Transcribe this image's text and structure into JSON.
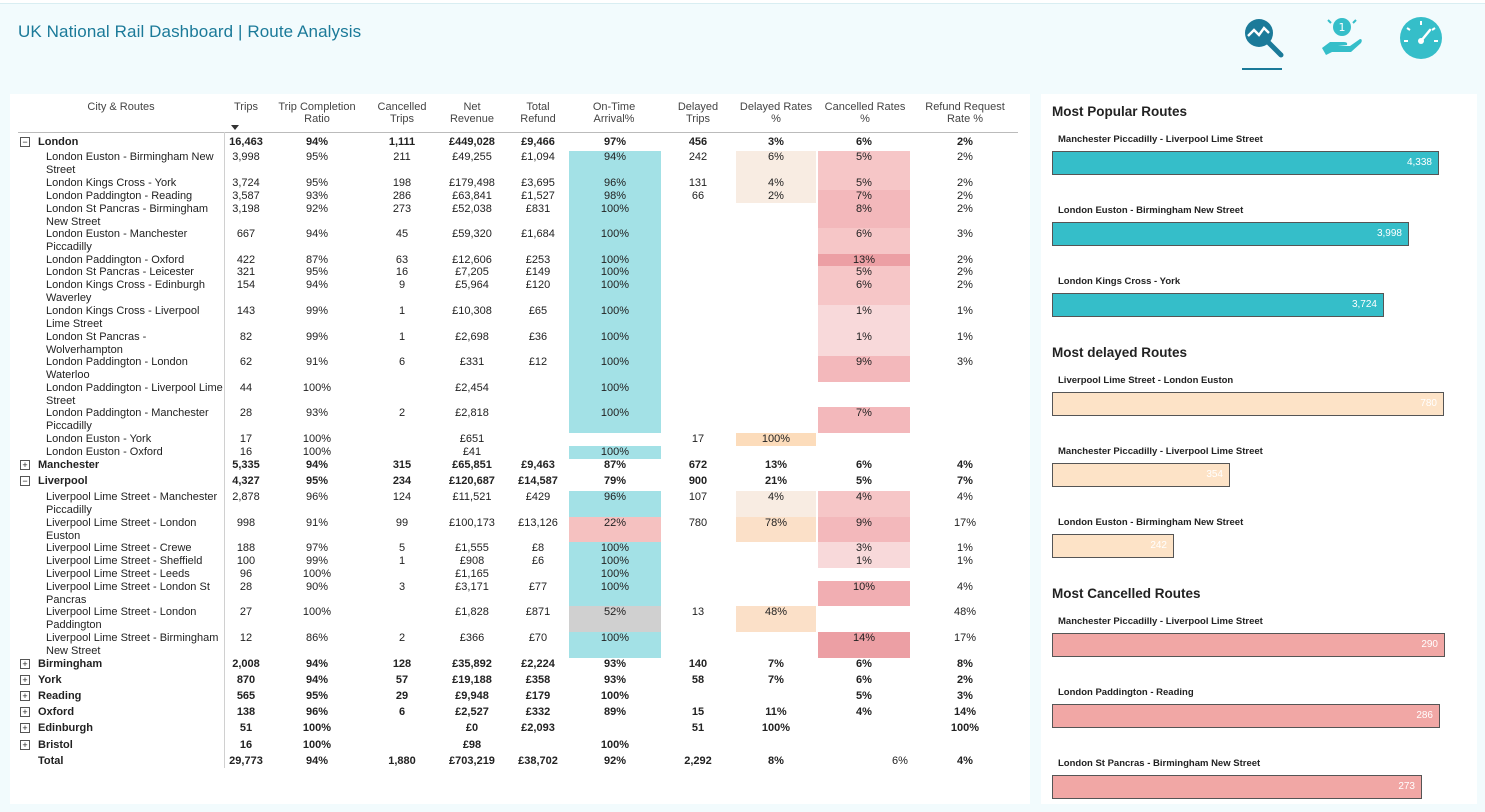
{
  "header": {
    "title": "UK National Rail Dashboard | Route Analysis",
    "nav_icons": [
      "route-analysis-icon",
      "refund-hand-icon",
      "speedometer-icon"
    ]
  },
  "colors": {
    "accent": "#1b7a99",
    "popular_bar": "#35bec9",
    "delayed_bar": "#fde3c7",
    "cancelled_bar": "#f1a7a5",
    "ontime_cell": "#a3e1e6"
  },
  "table": {
    "columns": [
      "City & Routes",
      "Trips",
      "Trip Completion Ratio",
      "Cancelled Trips",
      "Net Revenue",
      "Total Refund",
      "On-Time Arrival%",
      "Delayed Trips",
      "Delayed Rates %",
      "Cancelled Rates %",
      "Refund Request Rate %"
    ],
    "rows": [
      {
        "level": "parent",
        "expander": "⊟",
        "name": "London",
        "trips": "16,463",
        "ratio": "94%",
        "cancelled": "1,111",
        "revenue": "£449,028",
        "refund": "£9,466",
        "ontime": "97%",
        "delayed": "456",
        "delayed_rate": "3%",
        "cancelled_rate": "6%",
        "refund_rate": "2%"
      },
      {
        "level": "child",
        "name": "London Euston - Birmingham New Street",
        "trips": "3,998",
        "ratio": "95%",
        "cancelled": "211",
        "revenue": "£49,255",
        "refund": "£1,094",
        "ontime": "94%",
        "delayed": "242",
        "delayed_rate": "6%",
        "cancelled_rate": "5%",
        "refund_rate": "2%"
      },
      {
        "level": "child",
        "name": "London Kings Cross - York",
        "trips": "3,724",
        "ratio": "95%",
        "cancelled": "198",
        "revenue": "£179,498",
        "refund": "£3,695",
        "ontime": "96%",
        "delayed": "131",
        "delayed_rate": "4%",
        "cancelled_rate": "5%",
        "refund_rate": "2%"
      },
      {
        "level": "child",
        "name": "London Paddington - Reading",
        "trips": "3,587",
        "ratio": "93%",
        "cancelled": "286",
        "revenue": "£63,841",
        "refund": "£1,527",
        "ontime": "98%",
        "delayed": "66",
        "delayed_rate": "2%",
        "cancelled_rate": "7%",
        "refund_rate": "2%"
      },
      {
        "level": "child",
        "name": "London St Pancras - Birmingham New Street",
        "trips": "3,198",
        "ratio": "92%",
        "cancelled": "273",
        "revenue": "£52,038",
        "refund": "£831",
        "ontime": "100%",
        "delayed": "",
        "delayed_rate": "",
        "cancelled_rate": "8%",
        "refund_rate": "2%"
      },
      {
        "level": "child",
        "name": "London Euston - Manchester Piccadilly",
        "trips": "667",
        "ratio": "94%",
        "cancelled": "45",
        "revenue": "£59,320",
        "refund": "£1,684",
        "ontime": "100%",
        "delayed": "",
        "delayed_rate": "",
        "cancelled_rate": "6%",
        "refund_rate": "3%"
      },
      {
        "level": "child",
        "name": "London Paddington - Oxford",
        "trips": "422",
        "ratio": "87%",
        "cancelled": "63",
        "revenue": "£12,606",
        "refund": "£253",
        "ontime": "100%",
        "delayed": "",
        "delayed_rate": "",
        "cancelled_rate": "13%",
        "refund_rate": "2%"
      },
      {
        "level": "child",
        "name": "London St Pancras - Leicester",
        "trips": "321",
        "ratio": "95%",
        "cancelled": "16",
        "revenue": "£7,205",
        "refund": "£149",
        "ontime": "100%",
        "delayed": "",
        "delayed_rate": "",
        "cancelled_rate": "5%",
        "refund_rate": "2%"
      },
      {
        "level": "child",
        "name": "London Kings Cross - Edinburgh Waverley",
        "trips": "154",
        "ratio": "94%",
        "cancelled": "9",
        "revenue": "£5,964",
        "refund": "£120",
        "ontime": "100%",
        "delayed": "",
        "delayed_rate": "",
        "cancelled_rate": "6%",
        "refund_rate": "2%"
      },
      {
        "level": "child",
        "name": "London Kings Cross - Liverpool Lime Street",
        "trips": "143",
        "ratio": "99%",
        "cancelled": "1",
        "revenue": "£10,308",
        "refund": "£65",
        "ontime": "100%",
        "delayed": "",
        "delayed_rate": "",
        "cancelled_rate": "1%",
        "refund_rate": "1%"
      },
      {
        "level": "child",
        "name": "London St Pancras - Wolverhampton",
        "trips": "82",
        "ratio": "99%",
        "cancelled": "1",
        "revenue": "£2,698",
        "refund": "£36",
        "ontime": "100%",
        "delayed": "",
        "delayed_rate": "",
        "cancelled_rate": "1%",
        "refund_rate": "1%"
      },
      {
        "level": "child",
        "name": "London Paddington - London Waterloo",
        "trips": "62",
        "ratio": "91%",
        "cancelled": "6",
        "revenue": "£331",
        "refund": "£12",
        "ontime": "100%",
        "delayed": "",
        "delayed_rate": "",
        "cancelled_rate": "9%",
        "refund_rate": "3%"
      },
      {
        "level": "child",
        "name": "London Paddington - Liverpool Lime Street",
        "trips": "44",
        "ratio": "100%",
        "cancelled": "",
        "revenue": "£2,454",
        "refund": "",
        "ontime": "100%",
        "delayed": "",
        "delayed_rate": "",
        "cancelled_rate": "",
        "refund_rate": ""
      },
      {
        "level": "child",
        "name": "London Paddington - Manchester Piccadilly",
        "trips": "28",
        "ratio": "93%",
        "cancelled": "2",
        "revenue": "£2,818",
        "refund": "",
        "ontime": "100%",
        "delayed": "",
        "delayed_rate": "",
        "cancelled_rate": "7%",
        "refund_rate": ""
      },
      {
        "level": "child",
        "name": "London Euston - York",
        "trips": "17",
        "ratio": "100%",
        "cancelled": "",
        "revenue": "£651",
        "refund": "",
        "ontime": "",
        "delayed": "17",
        "delayed_rate": "100%",
        "cancelled_rate": "",
        "refund_rate": ""
      },
      {
        "level": "child",
        "name": "London Euston - Oxford",
        "trips": "16",
        "ratio": "100%",
        "cancelled": "",
        "revenue": "£41",
        "refund": "",
        "ontime": "100%",
        "delayed": "",
        "delayed_rate": "",
        "cancelled_rate": "",
        "refund_rate": ""
      },
      {
        "level": "parent",
        "expander": "⊞",
        "name": "Manchester",
        "trips": "5,335",
        "ratio": "94%",
        "cancelled": "315",
        "revenue": "£65,851",
        "refund": "£9,463",
        "ontime": "87%",
        "delayed": "672",
        "delayed_rate": "13%",
        "cancelled_rate": "6%",
        "refund_rate": "4%"
      },
      {
        "level": "parent",
        "expander": "⊟",
        "name": "Liverpool",
        "trips": "4,327",
        "ratio": "95%",
        "cancelled": "234",
        "revenue": "£120,687",
        "refund": "£14,587",
        "ontime": "79%",
        "delayed": "900",
        "delayed_rate": "21%",
        "cancelled_rate": "5%",
        "refund_rate": "7%"
      },
      {
        "level": "child",
        "name": "Liverpool Lime Street - Manchester Piccadilly",
        "trips": "2,878",
        "ratio": "96%",
        "cancelled": "124",
        "revenue": "£11,521",
        "refund": "£429",
        "ontime": "96%",
        "delayed": "107",
        "delayed_rate": "4%",
        "cancelled_rate": "4%",
        "refund_rate": "4%"
      },
      {
        "level": "child",
        "name": "Liverpool Lime Street - London Euston",
        "trips": "998",
        "ratio": "91%",
        "cancelled": "99",
        "revenue": "£100,173",
        "refund": "£13,126",
        "ontime": "22%",
        "delayed": "780",
        "delayed_rate": "78%",
        "cancelled_rate": "9%",
        "refund_rate": "17%"
      },
      {
        "level": "child",
        "name": "Liverpool Lime Street - Crewe",
        "trips": "188",
        "ratio": "97%",
        "cancelled": "5",
        "revenue": "£1,555",
        "refund": "£8",
        "ontime": "100%",
        "delayed": "",
        "delayed_rate": "",
        "cancelled_rate": "3%",
        "refund_rate": "1%"
      },
      {
        "level": "child",
        "name": "Liverpool Lime Street - Sheffield",
        "trips": "100",
        "ratio": "99%",
        "cancelled": "1",
        "revenue": "£908",
        "refund": "£6",
        "ontime": "100%",
        "delayed": "",
        "delayed_rate": "",
        "cancelled_rate": "1%",
        "refund_rate": "1%"
      },
      {
        "level": "child",
        "name": "Liverpool Lime Street - Leeds",
        "trips": "96",
        "ratio": "100%",
        "cancelled": "",
        "revenue": "£1,165",
        "refund": "",
        "ontime": "100%",
        "delayed": "",
        "delayed_rate": "",
        "cancelled_rate": "",
        "refund_rate": ""
      },
      {
        "level": "child",
        "name": "Liverpool Lime Street - London St Pancras",
        "trips": "28",
        "ratio": "90%",
        "cancelled": "3",
        "revenue": "£3,171",
        "refund": "£77",
        "ontime": "100%",
        "delayed": "",
        "delayed_rate": "",
        "cancelled_rate": "10%",
        "refund_rate": "4%"
      },
      {
        "level": "child",
        "name": "Liverpool Lime Street - London Paddington",
        "trips": "27",
        "ratio": "100%",
        "cancelled": "",
        "revenue": "£1,828",
        "refund": "£871",
        "ontime": "52%",
        "delayed": "13",
        "delayed_rate": "48%",
        "cancelled_rate": "",
        "refund_rate": "48%"
      },
      {
        "level": "child",
        "name": "Liverpool Lime Street - Birmingham New Street",
        "trips": "12",
        "ratio": "86%",
        "cancelled": "2",
        "revenue": "£366",
        "refund": "£70",
        "ontime": "100%",
        "delayed": "",
        "delayed_rate": "",
        "cancelled_rate": "14%",
        "refund_rate": "17%"
      },
      {
        "level": "parent",
        "expander": "⊞",
        "name": "Birmingham",
        "trips": "2,008",
        "ratio": "94%",
        "cancelled": "128",
        "revenue": "£35,892",
        "refund": "£2,224",
        "ontime": "93%",
        "delayed": "140",
        "delayed_rate": "7%",
        "cancelled_rate": "6%",
        "refund_rate": "8%"
      },
      {
        "level": "parent",
        "expander": "⊞",
        "name": "York",
        "trips": "870",
        "ratio": "94%",
        "cancelled": "57",
        "revenue": "£19,188",
        "refund": "£358",
        "ontime": "93%",
        "delayed": "58",
        "delayed_rate": "7%",
        "cancelled_rate": "6%",
        "refund_rate": "2%"
      },
      {
        "level": "parent",
        "expander": "⊞",
        "name": "Reading",
        "trips": "565",
        "ratio": "95%",
        "cancelled": "29",
        "revenue": "£9,948",
        "refund": "£179",
        "ontime": "100%",
        "delayed": "",
        "delayed_rate": "",
        "cancelled_rate": "5%",
        "refund_rate": "3%"
      },
      {
        "level": "parent",
        "expander": "⊞",
        "name": "Oxford",
        "trips": "138",
        "ratio": "96%",
        "cancelled": "6",
        "revenue": "£2,527",
        "refund": "£332",
        "ontime": "89%",
        "delayed": "15",
        "delayed_rate": "11%",
        "cancelled_rate": "4%",
        "refund_rate": "14%"
      },
      {
        "level": "parent",
        "expander": "⊞",
        "name": "Edinburgh",
        "trips": "51",
        "ratio": "100%",
        "cancelled": "",
        "revenue": "£0",
        "refund": "£2,093",
        "ontime": "",
        "delayed": "51",
        "delayed_rate": "100%",
        "cancelled_rate": "",
        "refund_rate": "100%"
      },
      {
        "level": "parent",
        "expander": "⊞",
        "name": "Bristol",
        "trips": "16",
        "ratio": "100%",
        "cancelled": "",
        "revenue": "£98",
        "refund": "",
        "ontime": "100%",
        "delayed": "",
        "delayed_rate": "",
        "cancelled_rate": "",
        "refund_rate": ""
      }
    ],
    "total": {
      "name": "Total",
      "trips": "29,773",
      "ratio": "94%",
      "cancelled": "1,880",
      "revenue": "£703,219",
      "refund": "£38,702",
      "ontime": "92%",
      "delayed": "2,292",
      "delayed_rate": "8%",
      "cancelled_rate": "6%",
      "refund_rate": "4%"
    }
  },
  "sidebar": {
    "popular": {
      "title": "Most Popular Routes",
      "items": [
        {
          "label": "Manchester Piccadilly - Liverpool Lime Street",
          "value": "4,338",
          "num": 4338
        },
        {
          "label": "London Euston - Birmingham New Street",
          "value": "3,998",
          "num": 3998
        },
        {
          "label": "London Kings Cross - York",
          "value": "3,724",
          "num": 3724
        }
      ]
    },
    "delayed": {
      "title": "Most delayed Routes",
      "items": [
        {
          "label": "Liverpool Lime Street - London Euston",
          "value": "780",
          "num": 780
        },
        {
          "label": "Manchester Piccadilly - Liverpool Lime Street",
          "value": "354",
          "num": 354
        },
        {
          "label": "London Euston - Birmingham New Street",
          "value": "242",
          "num": 242
        }
      ]
    },
    "cancelled": {
      "title": "Most Cancelled Routes",
      "items": [
        {
          "label": "Manchester Piccadilly - Liverpool Lime Street",
          "value": "290",
          "num": 290
        },
        {
          "label": "London Paddington - Reading",
          "value": "286",
          "num": 286
        },
        {
          "label": "London St Pancras - Birmingham New Street",
          "value": "273",
          "num": 273
        }
      ]
    }
  }
}
